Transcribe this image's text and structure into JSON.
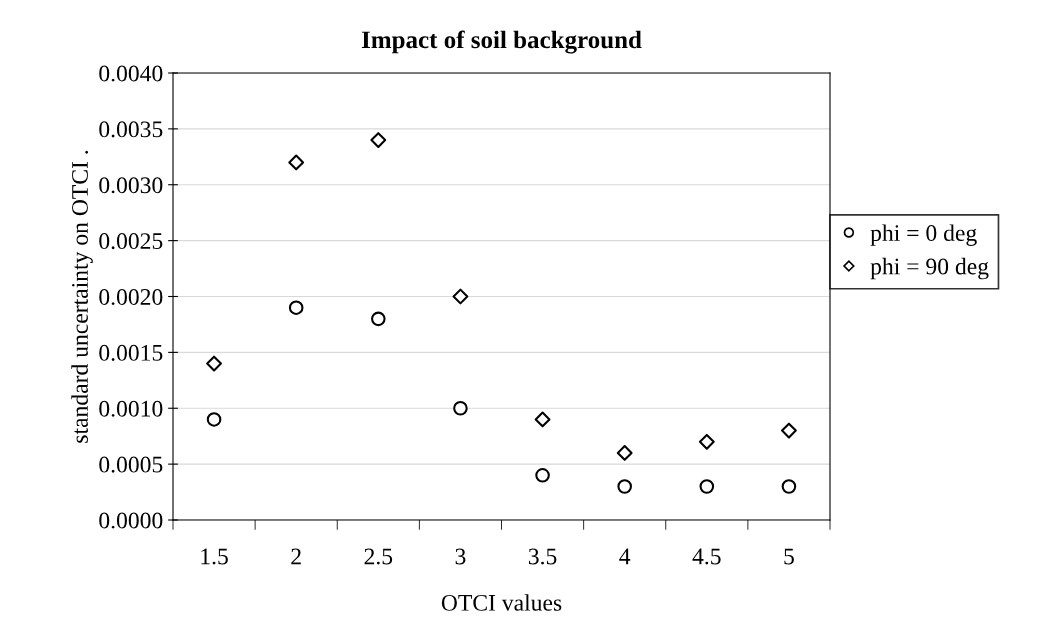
{
  "chart_data": {
    "type": "scatter",
    "title": "Impact of soil background",
    "xlabel": "OTCI values",
    "ylabel": "standard uncertainty on OTCI .",
    "categories": [
      "1.5",
      "2",
      "2.5",
      "3",
      "3.5",
      "4",
      "4.5",
      "5"
    ],
    "series": [
      {
        "name": "phi = 0 deg",
        "color": "#000000",
        "marker": "circle",
        "values": [
          0.0009,
          0.0019,
          0.0018,
          0.001,
          0.0004,
          0.0003,
          0.0003,
          0.0003
        ]
      },
      {
        "name": "phi = 90 deg",
        "color": "#000000",
        "marker": "diamond",
        "values": [
          0.0014,
          0.0032,
          0.0034,
          0.002,
          0.0009,
          0.0006,
          0.0007,
          0.0008
        ]
      }
    ],
    "ylim": [
      0,
      0.004
    ],
    "yticks": [
      {
        "value": 0,
        "label": "0.0000"
      },
      {
        "value": 0.0005,
        "label": "0.0005"
      },
      {
        "value": 0.001,
        "label": "0.0010"
      },
      {
        "value": 0.0015,
        "label": "0.0015"
      },
      {
        "value": 0.002,
        "label": "0.0020"
      },
      {
        "value": 0.0025,
        "label": "0.0025"
      },
      {
        "value": 0.003,
        "label": "0.0030"
      },
      {
        "value": 0.0035,
        "label": "0.0035"
      },
      {
        "value": 0.004,
        "label": "0.0040"
      }
    ],
    "grid": "y",
    "legend": "right"
  }
}
